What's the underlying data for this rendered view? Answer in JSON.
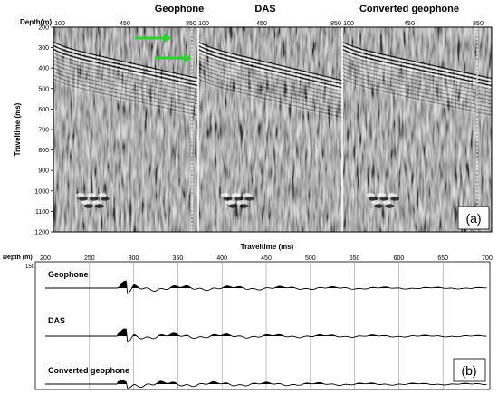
{
  "panel_a": {
    "depth_header": "Depth(m)",
    "section_titles": [
      "Geophone",
      "DAS",
      "Converted geophone"
    ],
    "depth_ticks": [
      "100",
      "450",
      "850"
    ],
    "y_label": "Traveltime (ms)",
    "y_ticks": [
      "200",
      "300",
      "400",
      "500",
      "600",
      "700",
      "800",
      "900",
      "1000",
      "1100",
      "1200"
    ],
    "panel_label": "(a)",
    "arrow_color": "#2fd12f"
  },
  "panel_b": {
    "depth_header": "Depth (m)",
    "depth_value": "150",
    "x_label": "Traveltime (ms)",
    "x_ticks": [
      "200",
      "250",
      "300",
      "350",
      "400",
      "450",
      "500",
      "550",
      "600",
      "650",
      "700"
    ],
    "trace_labels": [
      "Geophone",
      "DAS",
      "Converted geophone"
    ],
    "panel_label": "(b)"
  },
  "chart_data": [
    {
      "type": "heatmap",
      "title": "",
      "xlabel": "Depth(m)",
      "ylabel": "Traveltime (ms)",
      "panels": [
        "Geophone",
        "DAS",
        "Converted geophone"
      ],
      "x_ticks": [
        100,
        450,
        850
      ],
      "xlim": [
        100,
        850
      ],
      "ylim": [
        200,
        1200
      ],
      "y_ticks": [
        200,
        300,
        400,
        500,
        600,
        700,
        800,
        900,
        1000,
        1100,
        1200
      ],
      "first_arrival_ms": [
        {
          "depth": 100,
          "time": 290
        },
        {
          "depth": 450,
          "time": 360
        },
        {
          "depth": 850,
          "time": 450
        }
      ]
    },
    {
      "type": "line",
      "title": "",
      "xlabel": "Traveltime (ms)",
      "ylabel": "Depth (m)",
      "xlim": [
        200,
        700
      ],
      "x_ticks": [
        200,
        250,
        300,
        350,
        400,
        450,
        500,
        550,
        600,
        650,
        700
      ],
      "depth_m": 150,
      "series": [
        {
          "name": "Geophone"
        },
        {
          "name": "DAS"
        },
        {
          "name": "Converted geophone"
        }
      ],
      "grid": true
    }
  ]
}
